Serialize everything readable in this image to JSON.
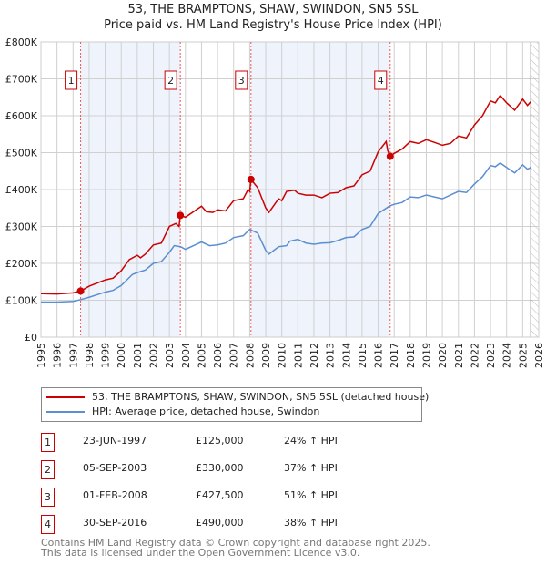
{
  "title": "53, THE BRAMPTONS, SHAW, SWINDON, SN5 5SL",
  "subtitle": "Price paid vs. HM Land Registry's House Price Index (HPI)",
  "chart_data": {
    "type": "line",
    "title": "53, THE BRAMPTONS, SHAW, SWINDON, SN5 5SL",
    "subtitle": "Price paid vs. HM Land Registry's House Price Index (HPI)",
    "xlim": [
      1995,
      2026
    ],
    "ylim": [
      0,
      800000
    ],
    "y_ticks": [
      {
        "v": 0,
        "label": "£0"
      },
      {
        "v": 100000,
        "label": "£100K"
      },
      {
        "v": 200000,
        "label": "£200K"
      },
      {
        "v": 300000,
        "label": "£300K"
      },
      {
        "v": 400000,
        "label": "£400K"
      },
      {
        "v": 500000,
        "label": "£500K"
      },
      {
        "v": 600000,
        "label": "£600K"
      },
      {
        "v": 700000,
        "label": "£700K"
      },
      {
        "v": 800000,
        "label": "£800K"
      }
    ],
    "x_ticks": [
      "1995",
      "1996",
      "1997",
      "1998",
      "1999",
      "2000",
      "2001",
      "2002",
      "2003",
      "2004",
      "2005",
      "2006",
      "2007",
      "2008",
      "2009",
      "2010",
      "2011",
      "2012",
      "2013",
      "2014",
      "2015",
      "2016",
      "2017",
      "2018",
      "2019",
      "2020",
      "2021",
      "2022",
      "2023",
      "2024",
      "2025",
      "2026"
    ],
    "grid": true,
    "series": [
      {
        "name": "53, THE BRAMPTONS, SHAW, SWINDON, SN5 5SL (detached house)",
        "color": "#cc0000",
        "x": [
          1995,
          1996,
          1997,
          1997.47,
          1998,
          1999,
          1999.5,
          2000,
          2000.5,
          2001,
          2001.2,
          2001.5,
          2002,
          2002.5,
          2003,
          2003.4,
          2003.6,
          2003.68,
          2004,
          2005,
          2005.3,
          2005.7,
          2006,
          2006.5,
          2007,
          2007.6,
          2007.9,
          2008.0,
          2008.08,
          2008.5,
          2009,
          2009.2,
          2009.8,
          2010,
          2010.3,
          2010.8,
          2011,
          2011.5,
          2012,
          2012.5,
          2013,
          2013.5,
          2014,
          2014.5,
          2015,
          2015.5,
          2016,
          2016.5,
          2016.6,
          2016.75,
          2017,
          2017.5,
          2018,
          2018.5,
          2019,
          2019.5,
          2020,
          2020.5,
          2021,
          2021.5,
          2022,
          2022.5,
          2023,
          2023.3,
          2023.6,
          2024,
          2024.5,
          2025,
          2025.3,
          2025.5
        ],
        "y": [
          118000,
          117000,
          120000,
          125000,
          138000,
          155000,
          160000,
          180000,
          210000,
          222000,
          215000,
          225000,
          250000,
          255000,
          300000,
          308000,
          300000,
          330000,
          325000,
          355000,
          340000,
          338000,
          345000,
          342000,
          370000,
          375000,
          400000,
          395000,
          427500,
          405000,
          350000,
          338000,
          375000,
          370000,
          395000,
          398000,
          390000,
          385000,
          385000,
          378000,
          390000,
          392000,
          405000,
          410000,
          440000,
          450000,
          502000,
          530000,
          505000,
          490000,
          498000,
          510000,
          530000,
          525000,
          535000,
          528000,
          520000,
          525000,
          545000,
          540000,
          575000,
          600000,
          640000,
          635000,
          655000,
          635000,
          615000,
          645000,
          628000,
          638000
        ]
      },
      {
        "name": "HPI: Average price, detached house, Swindon",
        "color": "#5b8fd0",
        "x": [
          1995,
          1996,
          1997,
          1997.5,
          1998,
          1999,
          1999.5,
          2000,
          2000.7,
          2001,
          2001.5,
          2002,
          2002.5,
          2003,
          2003.3,
          2003.7,
          2004,
          2004.5,
          2005,
          2005.5,
          2006,
          2006.5,
          2007,
          2007.6,
          2008,
          2008.5,
          2009,
          2009.2,
          2009.8,
          2010.3,
          2010.5,
          2011,
          2011.5,
          2012,
          2012.5,
          2013,
          2013.5,
          2014,
          2014.5,
          2015,
          2015.5,
          2016,
          2016.7,
          2017,
          2017.5,
          2018,
          2018.5,
          2019,
          2019.5,
          2020,
          2020.5,
          2021,
          2021.5,
          2022,
          2022.5,
          2023,
          2023.3,
          2023.6,
          2024,
          2024.5,
          2025,
          2025.3,
          2025.5
        ],
        "y": [
          95000,
          95000,
          97000,
          102000,
          108000,
          122000,
          127000,
          140000,
          170000,
          175000,
          182000,
          200000,
          205000,
          230000,
          248000,
          245000,
          238000,
          248000,
          258000,
          248000,
          250000,
          255000,
          270000,
          275000,
          292000,
          282000,
          235000,
          225000,
          245000,
          248000,
          260000,
          265000,
          255000,
          252000,
          255000,
          256000,
          262000,
          270000,
          272000,
          292000,
          300000,
          335000,
          355000,
          360000,
          365000,
          380000,
          378000,
          385000,
          380000,
          375000,
          385000,
          395000,
          392000,
          415000,
          435000,
          465000,
          462000,
          472000,
          460000,
          445000,
          467000,
          455000,
          460000
        ]
      }
    ],
    "sales": [
      {
        "id": "1",
        "x": 1997.47,
        "y": 125000
      },
      {
        "id": "2",
        "x": 2003.68,
        "y": 330000
      },
      {
        "id": "3",
        "x": 2008.08,
        "y": 427500
      },
      {
        "id": "4",
        "x": 2016.75,
        "y": 490000
      }
    ],
    "shaded_ranges": [
      [
        1997.47,
        2003.68
      ],
      [
        2008.08,
        2016.75
      ]
    ],
    "hatched_from": 2025.5,
    "legend_placement": "below"
  },
  "legend": [
    {
      "label": "53, THE BRAMPTONS, SHAW, SWINDON, SN5 5SL (detached house)",
      "color": "#cc0000"
    },
    {
      "label": "HPI: Average price, detached house, Swindon",
      "color": "#5b8fd0"
    }
  ],
  "sales_table": [
    {
      "id": "1",
      "date": "23-JUN-1997",
      "price": "£125,000",
      "hpi": "24% ↑ HPI"
    },
    {
      "id": "2",
      "date": "05-SEP-2003",
      "price": "£330,000",
      "hpi": "37% ↑ HPI"
    },
    {
      "id": "3",
      "date": "01-FEB-2008",
      "price": "£427,500",
      "hpi": "51% ↑ HPI"
    },
    {
      "id": "4",
      "date": "30-SEP-2016",
      "price": "£490,000",
      "hpi": "38% ↑ HPI"
    }
  ],
  "footer": [
    "Contains HM Land Registry data © Crown copyright and database right 2025.",
    "This data is licensed under the Open Government Licence v3.0."
  ]
}
